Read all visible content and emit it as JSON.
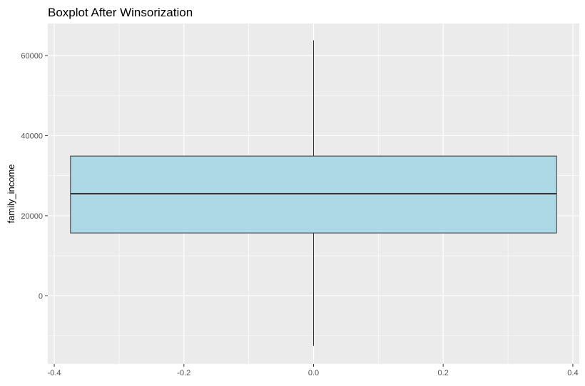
{
  "chart_data": {
    "type": "box",
    "title": "Boxplot After Winsorization",
    "xlabel": "",
    "ylabel": "family_income",
    "xlim": [
      -0.41,
      0.41
    ],
    "ylim": [
      -17000,
      68000
    ],
    "x_ticks": [
      -0.4,
      -0.2,
      0.0,
      0.2,
      0.4
    ],
    "x_tick_labels": [
      "-0.4",
      "-0.2",
      "0.0",
      "0.2",
      "0.4"
    ],
    "y_ticks": [
      0,
      20000,
      40000,
      60000
    ],
    "y_tick_labels": [
      "0",
      "20000",
      "40000",
      "60000"
    ],
    "grid": true,
    "box": {
      "x_center": 0,
      "x_min": -0.375,
      "x_max": 0.375,
      "q1": 15700,
      "median": 25500,
      "q3": 34900,
      "whisker_low": -12500,
      "whisker_high": 63800
    },
    "colors": {
      "panel_background": "#ebebeb",
      "grid_line": "#ffffff",
      "box_fill": "#add8e6",
      "box_outline": "#333333"
    }
  }
}
